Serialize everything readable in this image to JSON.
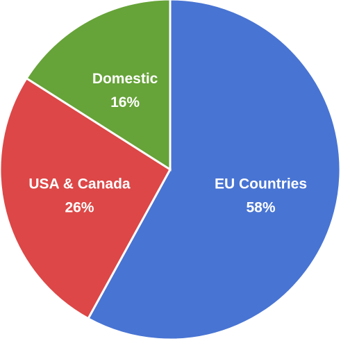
{
  "chart_data": {
    "type": "pie",
    "title": "",
    "slices": [
      {
        "label": "EU Countries",
        "value": 58,
        "value_label": "58%",
        "color": "#4874d3"
      },
      {
        "label": "USA & Canada",
        "value": 26,
        "value_label": "26%",
        "color": "#dd4747"
      },
      {
        "label": "Domestic",
        "value": 16,
        "value_label": "16%",
        "color": "#66a338"
      }
    ],
    "start_angle_deg": 0,
    "direction": "clockwise",
    "labels_inside": true,
    "legend": "none"
  }
}
